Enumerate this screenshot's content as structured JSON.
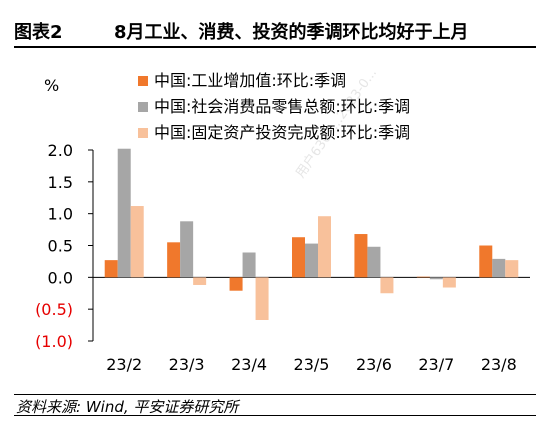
{
  "header": {
    "figure_label": "图表2",
    "title": "8月工业、消费、投资的季调环比均好于上月"
  },
  "footer": {
    "source": "资料来源: Wind, 平安证券研究所"
  },
  "watermark": "用户6363...2023-0...",
  "chart_data": {
    "type": "bar",
    "unit_label": "%",
    "categories": [
      "23/2",
      "23/3",
      "23/4",
      "23/5",
      "23/6",
      "23/7",
      "23/8"
    ],
    "ylim": [
      -1.0,
      2.0
    ],
    "yticks": [
      2.0,
      1.5,
      1.0,
      0.5,
      0.0,
      -0.5,
      -1.0
    ],
    "ytick_labels": [
      "2.0",
      "1.5",
      "1.0",
      "0.5",
      "0.0",
      "(0.5)",
      "(1.0)"
    ],
    "negative_tick_color": "#e60000",
    "legend_position": "top",
    "grid": false,
    "series": [
      {
        "name": "中国:工业增加值:环比:季调",
        "color": "#f0782c",
        "values": [
          0.27,
          0.55,
          -0.21,
          0.63,
          0.68,
          0.01,
          0.5
        ]
      },
      {
        "name": "中国:社会消费品零售总额:环比:季调",
        "color": "#a6a6a6",
        "values": [
          2.02,
          0.88,
          0.39,
          0.53,
          0.48,
          -0.03,
          0.29
        ]
      },
      {
        "name": "中国:固定资产投资完成额:环比:季调",
        "color": "#f8c19b",
        "values": [
          1.12,
          -0.12,
          -0.67,
          0.96,
          -0.25,
          -0.16,
          0.27
        ]
      }
    ]
  }
}
